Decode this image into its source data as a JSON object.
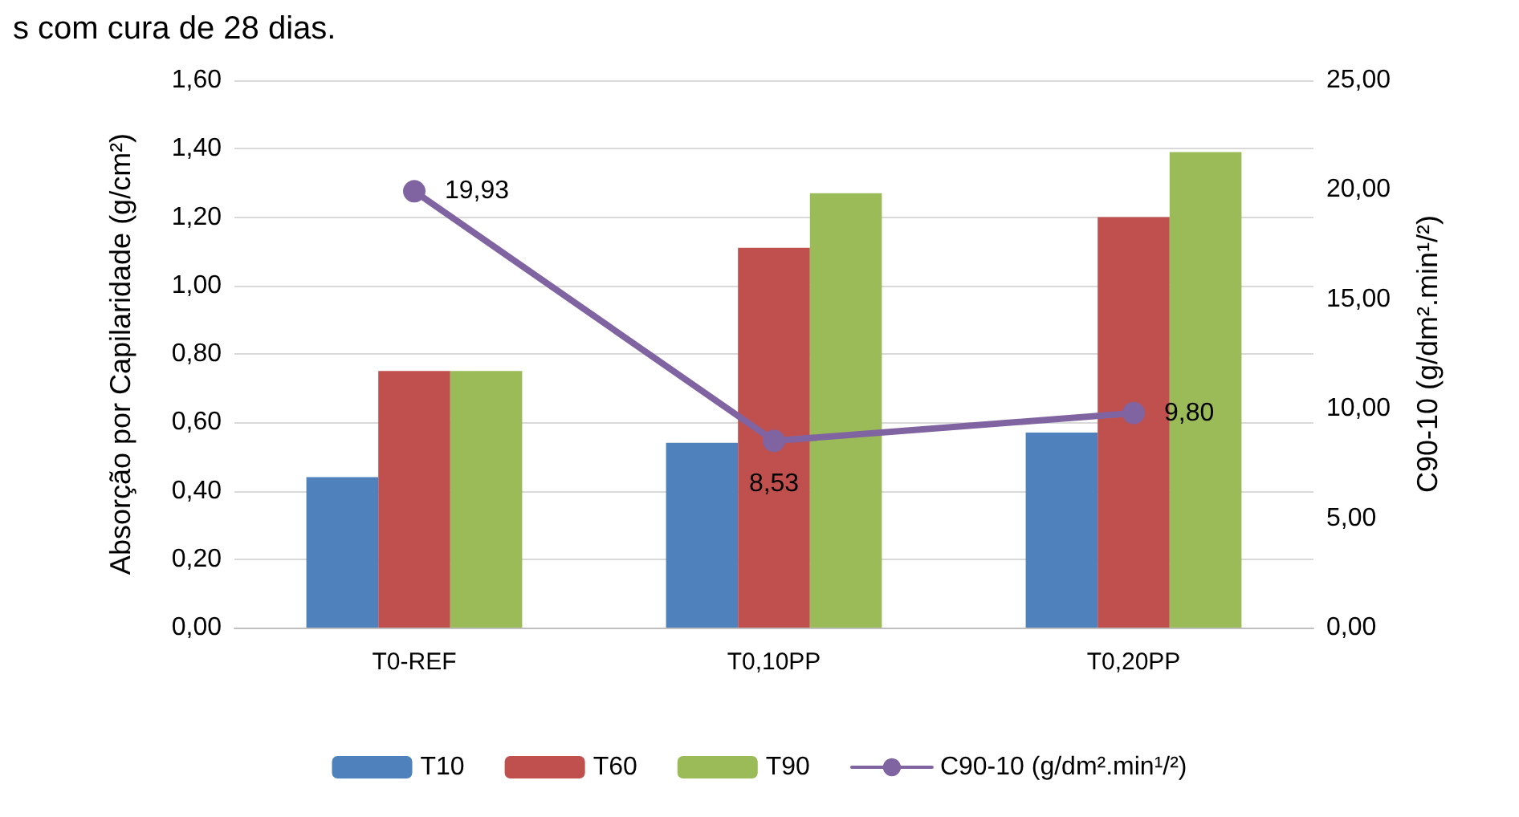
{
  "chart_data": {
    "type": "bar",
    "annotations": [
      "s com cura de 28 dias."
    ],
    "ylabel": "Absorção por Capilaridade (g/cm²)",
    "y2label": "C90-10 (g/dm².min¹/²)",
    "categories": [
      "T0-REF",
      "T0,10PP",
      "T0,20PP"
    ],
    "series": [
      {
        "name": "T10",
        "color": "#4f81bd",
        "values": [
          0.44,
          0.54,
          0.57
        ]
      },
      {
        "name": "T60",
        "color": "#c0504d",
        "values": [
          0.75,
          1.11,
          1.2
        ]
      },
      {
        "name": "T90",
        "color": "#9bbb59",
        "values": [
          0.75,
          1.27,
          1.39
        ]
      },
      {
        "name": "C90-10 (g/dm².min¹/²)",
        "type": "line",
        "axis": "y2",
        "color": "#8064a2",
        "values": [
          19.93,
          8.53,
          9.8
        ],
        "value_labels": [
          "19,93",
          "8,53",
          "9,80"
        ]
      }
    ],
    "ylim": [
      0,
      1.6
    ],
    "yticks": [
      {
        "value": 0,
        "label": "0,00"
      },
      {
        "value": 0.2,
        "label": "0,20"
      },
      {
        "value": 0.4,
        "label": "0,40"
      },
      {
        "value": 0.6,
        "label": "0,60"
      },
      {
        "value": 0.8,
        "label": "0,80"
      },
      {
        "value": 1,
        "label": "1,00"
      },
      {
        "value": 1.2,
        "label": "1,20"
      },
      {
        "value": 1.4,
        "label": "1,40"
      },
      {
        "value": 1.6,
        "label": "1,60"
      }
    ],
    "y2lim": [
      0,
      25
    ],
    "y2ticks": [
      {
        "value": 0,
        "label": "0,00"
      },
      {
        "value": 5,
        "label": "5,00"
      },
      {
        "value": 10,
        "label": "10,00"
      },
      {
        "value": 15,
        "label": "15,00"
      },
      {
        "value": 20,
        "label": "20,00"
      },
      {
        "value": 25,
        "label": "25,00"
      }
    ],
    "grid": "y",
    "legend": "bottom",
    "marker": "circle"
  }
}
